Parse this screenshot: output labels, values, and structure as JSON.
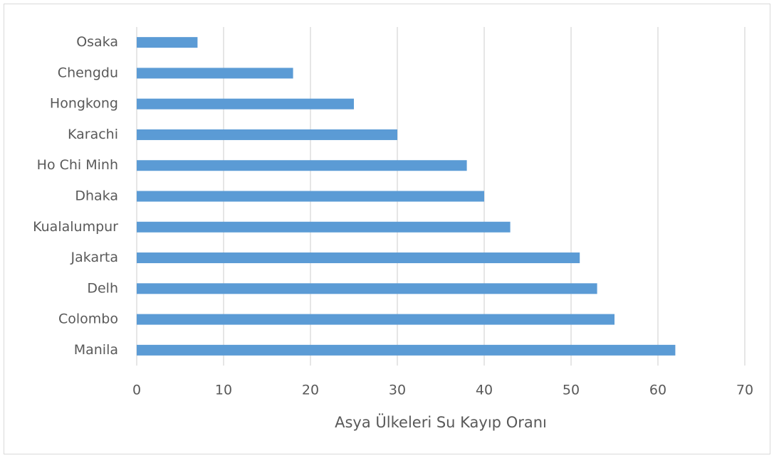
{
  "chart_data": {
    "type": "bar",
    "orientation": "horizontal",
    "x_label": "Asya Ülkeleri Su Kayıp Oranı",
    "categories": [
      "Osaka",
      "Chengdu",
      "Hongkong",
      "Karachi",
      "Ho Chi Minh",
      "Dhaka",
      "Kualalumpur",
      "Jakarta",
      "Delh",
      "Colombo",
      "Manila"
    ],
    "values": [
      7,
      18,
      25,
      30,
      38,
      40,
      43,
      51,
      53,
      55,
      62
    ],
    "color": "#5b9bd5",
    "xlim": [
      0,
      70
    ],
    "xticks": [
      0,
      10,
      20,
      30,
      40,
      50,
      60,
      70
    ],
    "grid": true
  }
}
